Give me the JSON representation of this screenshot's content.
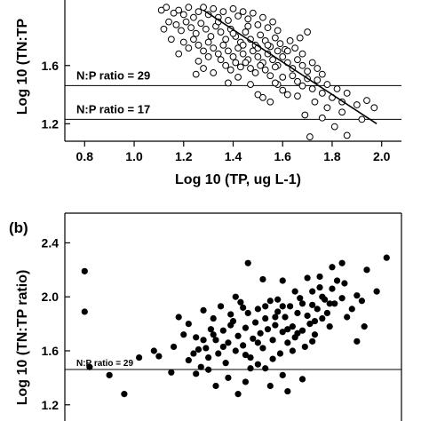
{
  "chart_data": [
    {
      "type": "scatter",
      "panel_label": "",
      "xlabel": "Log 10 (TP, ug L-1)",
      "ylabel": "Log 10 (TN:TP",
      "xlim": [
        0.72,
        2.08
      ],
      "ylim": [
        1.08,
        2.05
      ],
      "xticks": [
        "0.8",
        "1.0",
        "1.2",
        "1.4",
        "1.6",
        "1.8",
        "2.0"
      ],
      "yticks": [
        "1.2",
        "1.6"
      ],
      "marker": "open-circle",
      "reference_lines": [
        {
          "label": "N:P ratio = 29",
          "y": 1.462
        },
        {
          "label": "N:P ratio = 17",
          "y": 1.23
        }
      ],
      "regression_line": {
        "x": [
          1.28,
          1.98
        ],
        "y": [
          1.98,
          1.2
        ]
      },
      "series": [
        {
          "points": [
            [
              1.11,
              1.98
            ],
            [
              1.13,
              2.0
            ],
            [
              1.16,
              1.96
            ],
            [
              1.18,
              1.98
            ],
            [
              1.2,
              1.95
            ],
            [
              1.22,
              2.0
            ],
            [
              1.24,
              1.93
            ],
            [
              1.26,
              1.97
            ],
            [
              1.28,
              2.0
            ],
            [
              1.3,
              1.95
            ],
            [
              1.32,
              1.99
            ],
            [
              1.34,
              1.93
            ],
            [
              1.36,
              1.97
            ],
            [
              1.38,
              1.91
            ],
            [
              1.4,
              1.99
            ],
            [
              1.42,
              1.94
            ],
            [
              1.44,
              1.97
            ],
            [
              1.46,
              1.92
            ],
            [
              1.48,
              1.96
            ],
            [
              1.5,
              1.88
            ],
            [
              1.52,
              1.93
            ],
            [
              1.54,
              1.86
            ],
            [
              1.56,
              1.9
            ],
            [
              1.58,
              1.84
            ],
            [
              1.14,
              1.9
            ],
            [
              1.17,
              1.88
            ],
            [
              1.19,
              1.84
            ],
            [
              1.21,
              1.9
            ],
            [
              1.23,
              1.86
            ],
            [
              1.25,
              1.82
            ],
            [
              1.27,
              1.89
            ],
            [
              1.29,
              1.85
            ],
            [
              1.31,
              1.8
            ],
            [
              1.33,
              1.87
            ],
            [
              1.35,
              1.83
            ],
            [
              1.37,
              1.78
            ],
            [
              1.39,
              1.85
            ],
            [
              1.41,
              1.8
            ],
            [
              1.43,
              1.76
            ],
            [
              1.45,
              1.83
            ],
            [
              1.47,
              1.78
            ],
            [
              1.49,
              1.74
            ],
            [
              1.51,
              1.81
            ],
            [
              1.53,
              1.77
            ],
            [
              1.55,
              1.73
            ],
            [
              1.57,
              1.79
            ],
            [
              1.59,
              1.75
            ],
            [
              1.61,
              1.71
            ],
            [
              1.63,
              1.77
            ],
            [
              1.65,
              1.72
            ],
            [
              1.2,
              1.76
            ],
            [
              1.22,
              1.72
            ],
            [
              1.24,
              1.78
            ],
            [
              1.26,
              1.74
            ],
            [
              1.28,
              1.7
            ],
            [
              1.3,
              1.76
            ],
            [
              1.32,
              1.72
            ],
            [
              1.34,
              1.68
            ],
            [
              1.36,
              1.74
            ],
            [
              1.38,
              1.7
            ],
            [
              1.4,
              1.66
            ],
            [
              1.42,
              1.72
            ],
            [
              1.44,
              1.68
            ],
            [
              1.46,
              1.64
            ],
            [
              1.48,
              1.7
            ],
            [
              1.5,
              1.66
            ],
            [
              1.52,
              1.62
            ],
            [
              1.54,
              1.68
            ],
            [
              1.56,
              1.64
            ],
            [
              1.58,
              1.6
            ],
            [
              1.6,
              1.66
            ],
            [
              1.62,
              1.62
            ],
            [
              1.64,
              1.58
            ],
            [
              1.66,
              1.64
            ],
            [
              1.68,
              1.6
            ],
            [
              1.7,
              1.56
            ],
            [
              1.72,
              1.62
            ],
            [
              1.74,
              1.58
            ],
            [
              1.76,
              1.54
            ],
            [
              1.45,
              1.62
            ],
            [
              1.47,
              1.58
            ],
            [
              1.49,
              1.55
            ],
            [
              1.51,
              1.6
            ],
            [
              1.53,
              1.57
            ],
            [
              1.55,
              1.53
            ],
            [
              1.57,
              1.59
            ],
            [
              1.35,
              1.64
            ],
            [
              1.37,
              1.6
            ],
            [
              1.39,
              1.57
            ],
            [
              1.41,
              1.62
            ],
            [
              1.43,
              1.59
            ],
            [
              1.64,
              1.53
            ],
            [
              1.66,
              1.49
            ],
            [
              1.68,
              1.46
            ],
            [
              1.7,
              1.51
            ],
            [
              1.72,
              1.44
            ],
            [
              1.74,
              1.5
            ],
            [
              1.76,
              1.41
            ],
            [
              1.78,
              1.47
            ],
            [
              1.8,
              1.38
            ],
            [
              1.82,
              1.44
            ],
            [
              1.84,
              1.35
            ],
            [
              1.86,
              1.41
            ],
            [
              1.6,
              1.43
            ],
            [
              1.62,
              1.4
            ],
            [
              1.58,
              1.47
            ],
            [
              1.73,
              1.35
            ],
            [
              1.78,
              1.31
            ],
            [
              1.84,
              1.28
            ],
            [
              1.9,
              1.33
            ],
            [
              1.94,
              1.36
            ],
            [
              1.97,
              1.31
            ],
            [
              1.69,
              1.26
            ],
            [
              1.71,
              1.11
            ],
            [
              1.81,
              1.18
            ],
            [
              1.86,
              1.12
            ],
            [
              1.92,
              1.23
            ],
            [
              1.76,
              1.24
            ],
            [
              1.55,
              1.35
            ],
            [
              1.5,
              1.4
            ],
            [
              1.52,
              1.38
            ],
            [
              1.42,
              1.52
            ],
            [
              1.38,
              1.48
            ],
            [
              1.32,
              1.55
            ],
            [
              1.28,
              1.58
            ],
            [
              1.26,
              1.63
            ],
            [
              1.18,
              1.68
            ],
            [
              1.15,
              1.78
            ],
            [
              1.12,
              1.85
            ],
            [
              1.47,
              1.47
            ],
            [
              1.67,
              1.79
            ],
            [
              1.7,
              1.83
            ],
            [
              1.25,
              1.54
            ],
            [
              1.6,
              1.52
            ],
            [
              1.57,
              1.48
            ],
            [
              1.66,
              1.39
            ],
            [
              1.5,
              1.72
            ],
            [
              1.46,
              1.87
            ],
            [
              1.4,
              1.82
            ],
            [
              1.34,
              1.9
            ],
            [
              1.62,
              1.7
            ],
            [
              1.54,
              1.74
            ],
            [
              1.58,
              1.7
            ],
            [
              1.68,
              1.68
            ],
            [
              1.3,
              1.66
            ],
            [
              1.44,
              1.74
            ]
          ]
        }
      ]
    },
    {
      "type": "scatter",
      "panel_label": "(b)",
      "xlabel": "",
      "ylabel": "Log 10 (TN:TP ratio)",
      "xlim": [
        0.72,
        2.08
      ],
      "ylim": [
        1.08,
        2.62
      ],
      "yticks": [
        "2.4",
        "2.0",
        "1.6",
        "1.2"
      ],
      "marker": "filled-circle",
      "reference_lines": [
        {
          "label": "N:P ratio = 29",
          "y": 1.462
        }
      ],
      "series": [
        {
          "points": [
            [
              0.8,
              2.19
            ],
            [
              0.8,
              1.89
            ],
            [
              0.82,
              1.48
            ],
            [
              0.9,
              1.42
            ],
            [
              0.96,
              1.28
            ],
            [
              1.02,
              1.55
            ],
            [
              1.08,
              1.6
            ],
            [
              1.16,
              1.63
            ],
            [
              1.2,
              1.72
            ],
            [
              1.22,
              1.8
            ],
            [
              1.22,
              1.53
            ],
            [
              1.24,
              1.58
            ],
            [
              1.25,
              1.7
            ],
            [
              1.27,
              1.48
            ],
            [
              1.28,
              1.9
            ],
            [
              1.29,
              1.62
            ],
            [
              1.3,
              1.55
            ],
            [
              1.31,
              1.76
            ],
            [
              1.32,
              1.84
            ],
            [
              1.33,
              1.68
            ],
            [
              1.34,
              1.58
            ],
            [
              1.35,
              1.93
            ],
            [
              1.36,
              1.75
            ],
            [
              1.37,
              1.51
            ],
            [
              1.38,
              1.66
            ],
            [
              1.39,
              1.87
            ],
            [
              1.4,
              1.82
            ],
            [
              1.41,
              1.6
            ],
            [
              1.42,
              1.71
            ],
            [
              1.43,
              1.96
            ],
            [
              1.44,
              1.64
            ],
            [
              1.45,
              1.77
            ],
            [
              1.46,
              1.88
            ],
            [
              1.47,
              1.55
            ],
            [
              1.48,
              1.69
            ],
            [
              1.49,
              1.81
            ],
            [
              1.5,
              1.91
            ],
            [
              1.51,
              1.73
            ],
            [
              1.52,
              1.62
            ],
            [
              1.53,
              1.84
            ],
            [
              1.54,
              1.76
            ],
            [
              1.55,
              1.97
            ],
            [
              1.56,
              1.68
            ],
            [
              1.57,
              1.79
            ],
            [
              1.58,
              1.89
            ],
            [
              1.59,
              1.58
            ],
            [
              1.6,
              1.74
            ],
            [
              1.61,
              1.85
            ],
            [
              1.62,
              1.66
            ],
            [
              1.63,
              1.93
            ],
            [
              1.64,
              1.78
            ],
            [
              1.65,
              1.7
            ],
            [
              1.66,
              1.88
            ],
            [
              1.67,
              1.99
            ],
            [
              1.68,
              1.75
            ],
            [
              1.69,
              1.63
            ],
            [
              1.7,
              1.86
            ],
            [
              1.71,
              1.8
            ],
            [
              1.72,
              1.94
            ],
            [
              1.73,
              1.72
            ],
            [
              1.74,
              1.91
            ],
            [
              1.75,
              2.07
            ],
            [
              1.76,
              1.84
            ],
            [
              1.77,
              1.98
            ],
            [
              1.78,
              1.88
            ],
            [
              1.79,
              1.78
            ],
            [
              1.8,
              2.06
            ],
            [
              1.81,
              1.95
            ],
            [
              1.82,
              2.12
            ],
            [
              1.84,
              1.99
            ],
            [
              1.86,
              1.85
            ],
            [
              1.88,
              1.91
            ],
            [
              1.9,
              2.01
            ],
            [
              1.92,
              1.97
            ],
            [
              1.75,
              2.15
            ],
            [
              1.6,
              2.12
            ],
            [
              1.7,
              2.14
            ],
            [
              1.8,
              2.22
            ],
            [
              1.84,
              2.25
            ],
            [
              1.94,
              2.2
            ],
            [
              1.46,
              2.25
            ],
            [
              1.52,
              2.13
            ],
            [
              1.98,
              2.04
            ],
            [
              2.02,
              2.29
            ],
            [
              1.9,
              1.67
            ],
            [
              1.93,
              1.78
            ],
            [
              1.56,
              1.54
            ],
            [
              1.47,
              1.47
            ],
            [
              1.3,
              1.46
            ],
            [
              1.38,
              1.4
            ],
            [
              1.45,
              1.37
            ],
            [
              1.55,
              1.34
            ],
            [
              1.62,
              1.3
            ],
            [
              1.42,
              1.28
            ],
            [
              1.33,
              1.34
            ],
            [
              1.25,
              1.43
            ],
            [
              1.68,
              1.39
            ],
            [
              1.6,
              1.42
            ],
            [
              1.15,
              1.44
            ],
            [
              1.1,
              1.56
            ],
            [
              1.18,
              1.85
            ],
            [
              1.32,
              1.72
            ],
            [
              1.41,
              2.0
            ],
            [
              1.53,
              1.93
            ],
            [
              1.65,
              2.04
            ],
            [
              1.73,
              1.82
            ],
            [
              1.64,
              1.6
            ],
            [
              1.5,
              1.66
            ],
            [
              1.36,
              1.63
            ],
            [
              1.28,
              1.68
            ],
            [
              1.58,
              1.98
            ],
            [
              1.66,
              1.73
            ],
            [
              1.72,
              1.67
            ],
            [
              1.79,
              1.95
            ],
            [
              1.57,
              1.85
            ],
            [
              1.44,
              1.92
            ],
            [
              1.39,
              1.79
            ],
            [
              1.26,
              1.61
            ],
            [
              1.62,
              1.76
            ],
            [
              1.68,
              1.95
            ],
            [
              1.76,
              2.0
            ],
            [
              1.5,
              1.5
            ],
            [
              1.45,
              1.57
            ],
            [
              1.53,
              1.47
            ],
            [
              1.6,
              1.93
            ],
            [
              1.72,
              2.04
            ],
            [
              1.85,
              2.1
            ]
          ]
        }
      ]
    }
  ]
}
